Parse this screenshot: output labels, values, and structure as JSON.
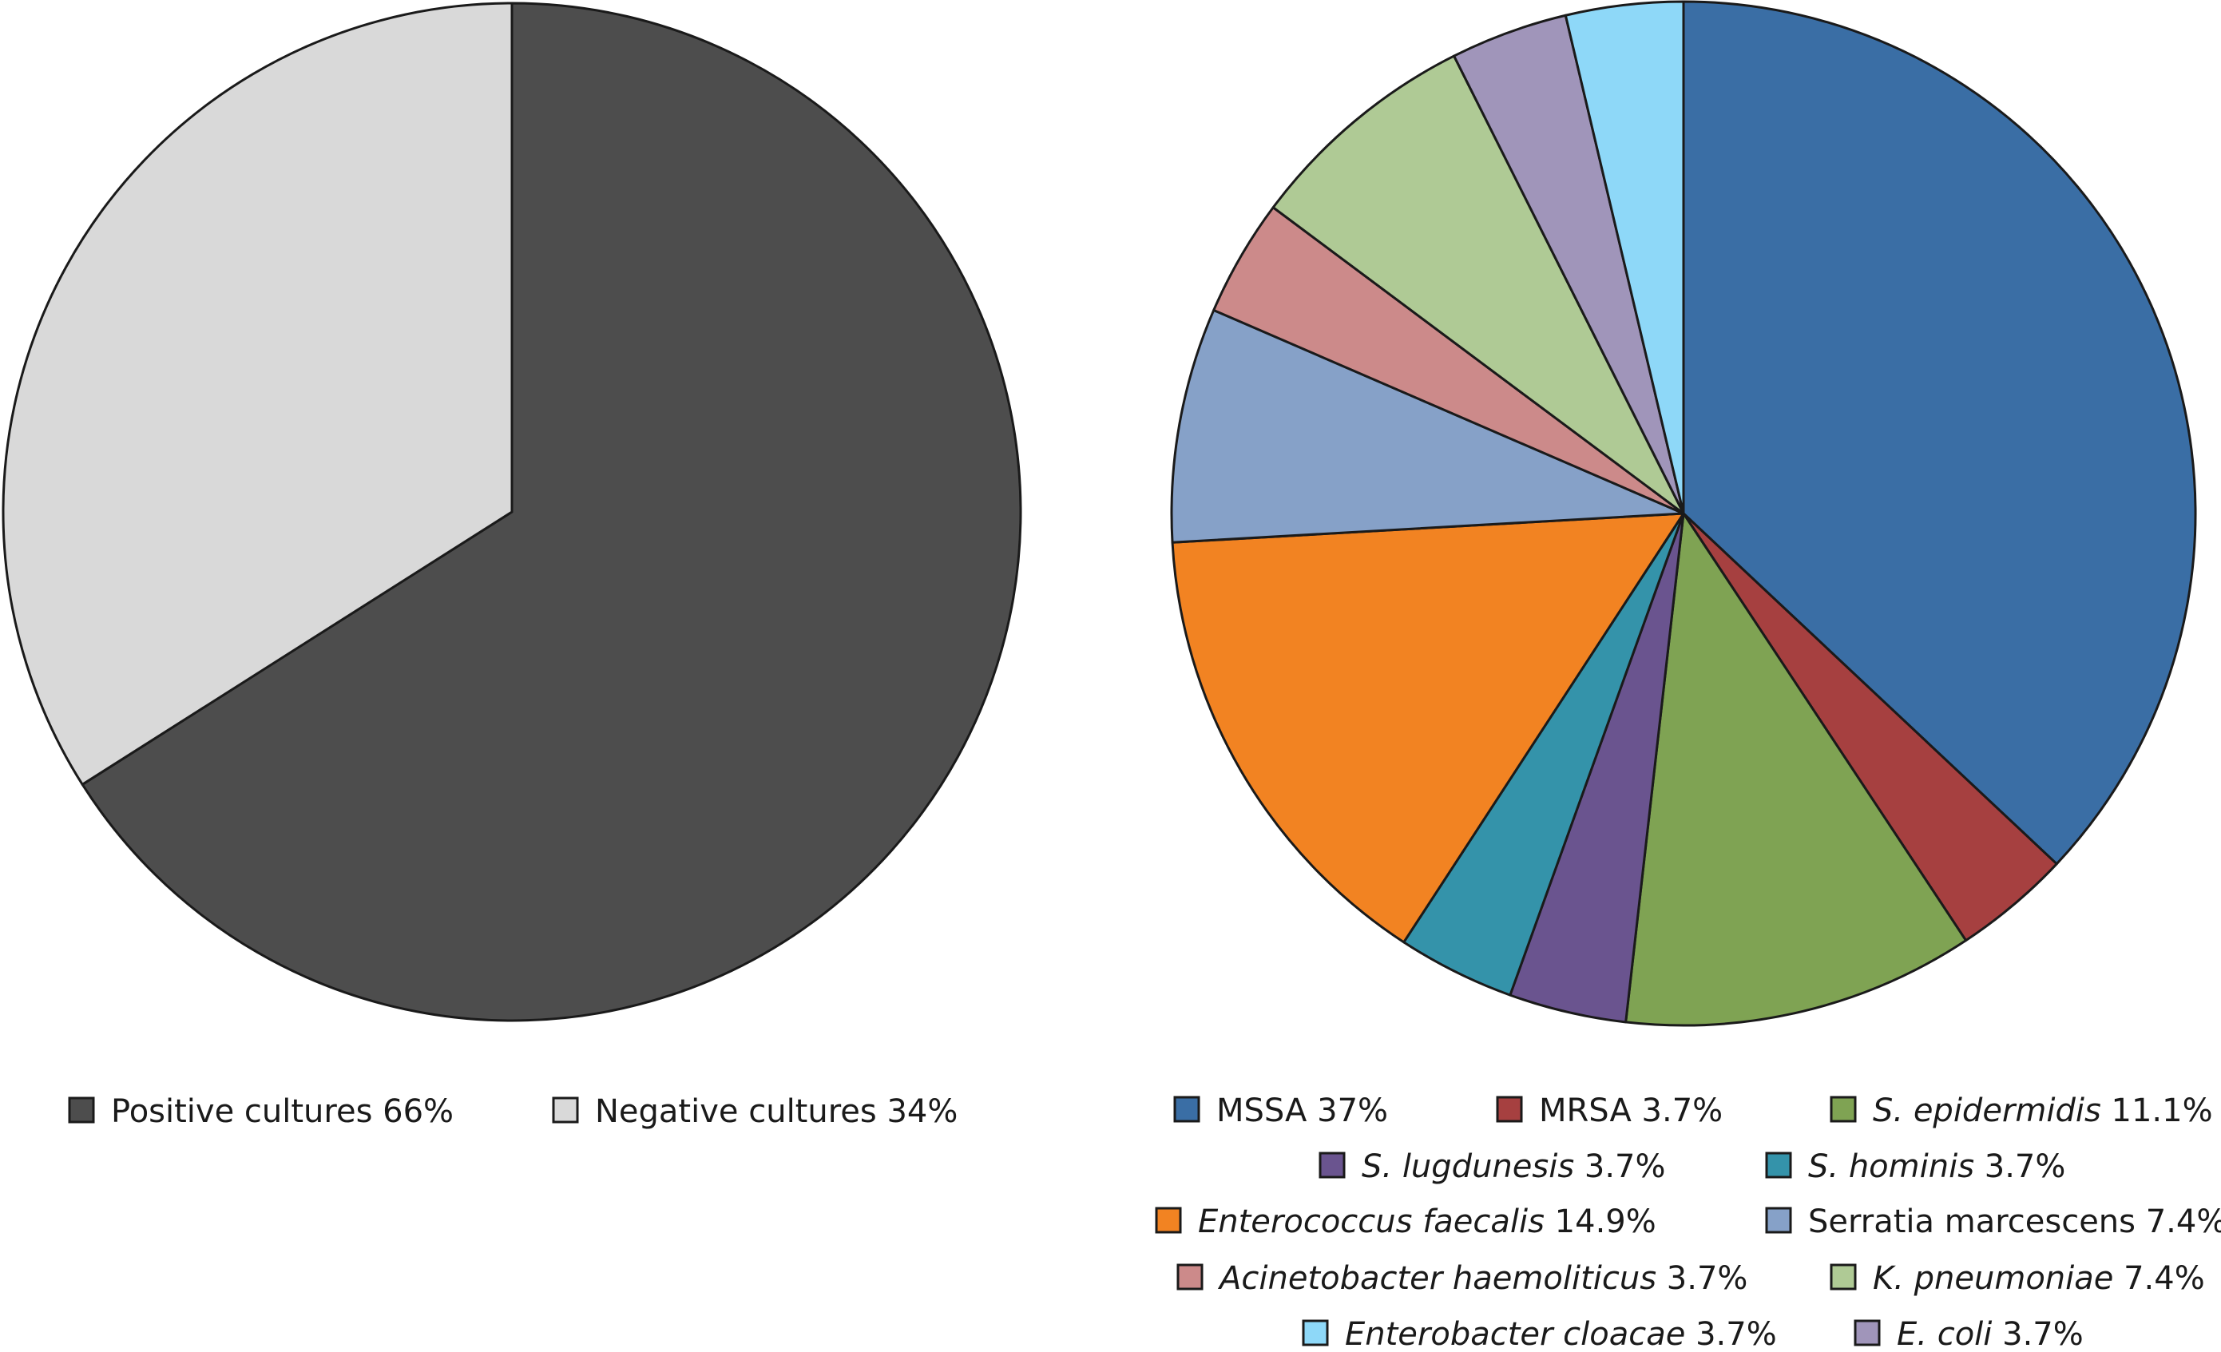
{
  "chart_data": [
    {
      "type": "pie",
      "title": "",
      "slices": [
        {
          "label": "Positive cultures",
          "value": 66,
          "color": "#4d4d4d",
          "label_text": "Positive cultures 66%"
        },
        {
          "label": "Negative cultures",
          "value": 34,
          "color": "#d9d9d9",
          "label_text": "Negative cultures 34%"
        }
      ],
      "legend": "bottom"
    },
    {
      "type": "pie",
      "title": "",
      "slices": [
        {
          "label": "MSSA",
          "value": 37,
          "color": "#3a6ea5",
          "legend_name": "MSSA",
          "legend_value": "37%",
          "italic": false
        },
        {
          "label": "MRSA",
          "value": 3.7,
          "color": "#a64040",
          "legend_name": "MRSA",
          "legend_value": "3.7%",
          "italic": false
        },
        {
          "label": "S. epidermidis",
          "value": 11.1,
          "color": "#7fa353",
          "legend_name": "S. epidermidis",
          "legend_value": "11.1%",
          "italic": true
        },
        {
          "label": "S. lugdunesis",
          "value": 3.7,
          "color": "#6a548f",
          "legend_name": "S. lugdunesis",
          "legend_value": "3.7%",
          "italic": true
        },
        {
          "label": "S. hominis",
          "value": 3.7,
          "color": "#3493aa",
          "legend_name": "S. hominis",
          "legend_value": "3.7%",
          "italic": true
        },
        {
          "label": "Enterococcus faecalis",
          "value": 14.9,
          "color": "#f28322",
          "legend_name": "Enterococcus faecalis",
          "legend_value": "14.9%",
          "italic": true
        },
        {
          "label": "Serratia marcescens",
          "value": 7.4,
          "color": "#86a1c8",
          "legend_name": "Serratia marcescens",
          "legend_value": "7.4%",
          "italic": false
        },
        {
          "label": "Acinetobacter haemoliticus",
          "value": 3.7,
          "color": "#cc8a8a",
          "legend_name": "Acinetobacter haemoliticus",
          "legend_value": "3.7%",
          "italic": true
        },
        {
          "label": "K. pneumoniae",
          "value": 7.4,
          "color": "#afca95",
          "legend_name": "K. pneumoniae",
          "legend_value": "7.4%",
          "italic": true
        },
        {
          "label": "E. coli",
          "value": 3.7,
          "color": "#a095ba",
          "legend_name": "E. coli",
          "legend_value": "3.7%",
          "italic": true
        },
        {
          "label": "Enterobacter cloacae",
          "value": 3.7,
          "color": "#8ed8f8",
          "legend_name": "Enterobacter cloacae",
          "legend_value": "3.7%",
          "italic": true
        }
      ],
      "legend": "bottom"
    }
  ]
}
